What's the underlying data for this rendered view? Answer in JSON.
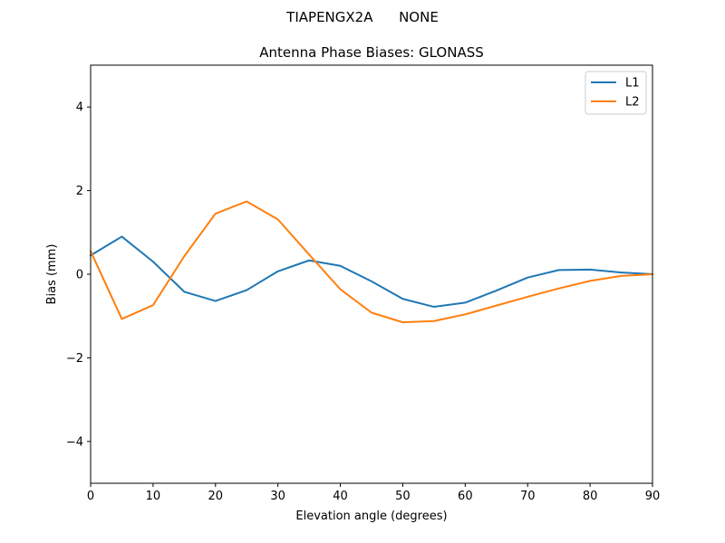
{
  "suptitle": "TIAPENGX2A      NONE",
  "chart_data": {
    "type": "line",
    "title": "Antenna Phase Biases: GLONASS",
    "xlabel": "Elevation angle (degrees)",
    "ylabel": "Bias (mm)",
    "xlim": [
      0,
      90
    ],
    "ylim": [
      -5,
      5
    ],
    "xticks": [
      0,
      10,
      20,
      30,
      40,
      50,
      60,
      70,
      80,
      90
    ],
    "xtick_labels": [
      "0",
      "10",
      "20",
      "30",
      "40",
      "50",
      "60",
      "70",
      "80",
      "90"
    ],
    "yticks": [
      -4,
      -2,
      0,
      2,
      4
    ],
    "ytick_labels": [
      "−4",
      "−2",
      "0",
      "2",
      "4"
    ],
    "grid": false,
    "legend_position": "top-right",
    "x": [
      0,
      5,
      10,
      15,
      20,
      25,
      30,
      35,
      40,
      45,
      50,
      55,
      60,
      65,
      70,
      75,
      80,
      85,
      90
    ],
    "series": [
      {
        "name": "L1",
        "color": "#1f77b4",
        "values": [
          0.45,
          0.9,
          0.3,
          -0.42,
          -0.64,
          -0.38,
          0.07,
          0.33,
          0.2,
          -0.17,
          -0.59,
          -0.78,
          -0.68,
          -0.39,
          -0.08,
          0.1,
          0.11,
          0.04,
          0.0
        ]
      },
      {
        "name": "L2",
        "color": "#ff7f0e",
        "values": [
          0.55,
          -1.07,
          -0.74,
          0.43,
          1.45,
          1.74,
          1.31,
          0.47,
          -0.36,
          -0.92,
          -1.15,
          -1.12,
          -0.96,
          -0.75,
          -0.54,
          -0.34,
          -0.16,
          -0.04,
          0.0
        ]
      }
    ]
  }
}
